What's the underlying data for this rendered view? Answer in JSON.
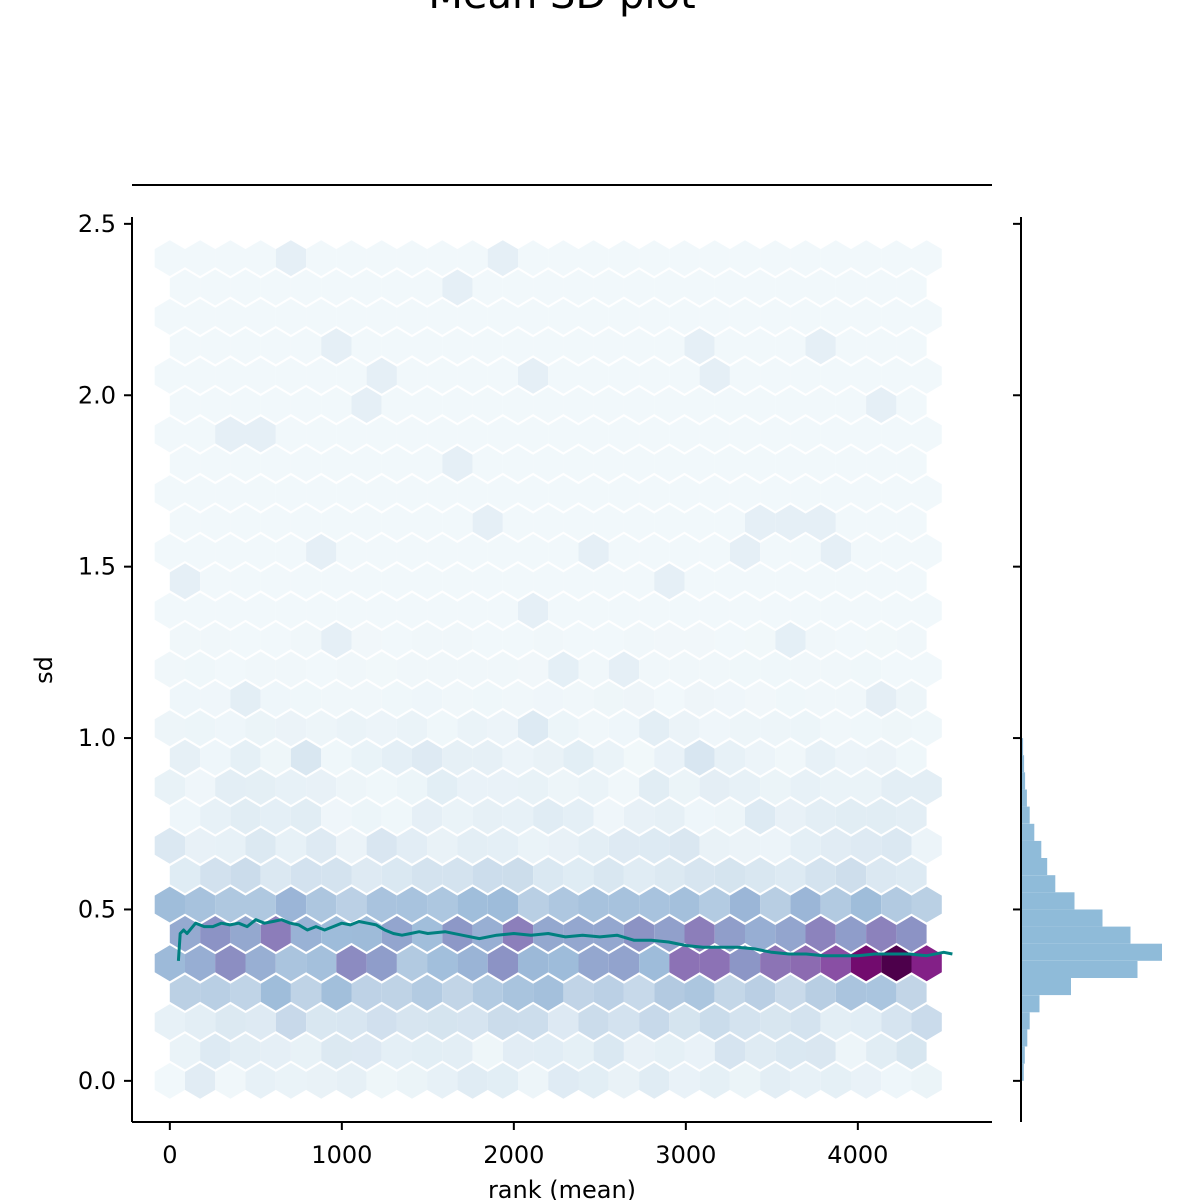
{
  "chart_data": {
    "type": "hexbin",
    "title": "Mean SD plot",
    "xlabel": "rank (mean)",
    "ylabel": "sd",
    "xlim": [
      -220,
      4780
    ],
    "ylim": [
      -0.12,
      2.52
    ],
    "xticks": [
      0,
      1000,
      2000,
      3000,
      4000
    ],
    "xtick_labels": [
      "0",
      "1000",
      "2000",
      "3000",
      "4000"
    ],
    "yticks": [
      0.0,
      0.5,
      1.0,
      1.5,
      2.0,
      2.5
    ],
    "ytick_labels": [
      "0.0",
      "0.5",
      "1.0",
      "1.5",
      "2.0",
      "2.5"
    ],
    "grid": false,
    "hexbin": {
      "colormap": "BuPu",
      "x_range": [
        0,
        4400
      ],
      "y_range": [
        0.0,
        2.4
      ],
      "gridsize": 25,
      "dense_cells": [
        {
          "x": 4200,
          "y": 0.375,
          "level": 1.0
        },
        {
          "x": 4100,
          "y": 0.375,
          "level": 0.95
        },
        {
          "x": 4300,
          "y": 0.375,
          "level": 0.9
        },
        {
          "x": 3900,
          "y": 0.375,
          "level": 0.8
        },
        {
          "x": 3750,
          "y": 0.375,
          "level": 0.72
        },
        {
          "x": 3000,
          "y": 0.375,
          "level": 0.7
        },
        {
          "x": 3200,
          "y": 0.33,
          "level": 0.7
        },
        {
          "x": 3450,
          "y": 0.375,
          "level": 0.6
        },
        {
          "x": 3300,
          "y": 0.375,
          "level": 0.6
        },
        {
          "x": 2700,
          "y": 0.375,
          "level": 0.55
        },
        {
          "x": 2850,
          "y": 0.42,
          "level": 0.5
        },
        {
          "x": 1900,
          "y": 0.47,
          "level": 0.45
        }
      ]
    },
    "rolling_line": {
      "color": "#008080",
      "x": [
        50,
        60,
        80,
        100,
        150,
        200,
        250,
        300,
        350,
        400,
        450,
        500,
        550,
        600,
        650,
        700,
        750,
        800,
        850,
        900,
        950,
        1000,
        1050,
        1100,
        1150,
        1200,
        1250,
        1300,
        1350,
        1400,
        1450,
        1500,
        1600,
        1700,
        1800,
        1900,
        2000,
        2100,
        2200,
        2300,
        2400,
        2500,
        2600,
        2700,
        2800,
        2900,
        3000,
        3100,
        3200,
        3300,
        3400,
        3500,
        3600,
        3700,
        3800,
        3900,
        4000,
        4100,
        4200,
        4300,
        4400,
        4500,
        4550
      ],
      "y": [
        0.35,
        0.43,
        0.44,
        0.43,
        0.46,
        0.45,
        0.45,
        0.46,
        0.455,
        0.46,
        0.45,
        0.47,
        0.46,
        0.465,
        0.47,
        0.46,
        0.455,
        0.44,
        0.45,
        0.44,
        0.45,
        0.46,
        0.455,
        0.465,
        0.46,
        0.455,
        0.44,
        0.43,
        0.425,
        0.43,
        0.435,
        0.43,
        0.435,
        0.425,
        0.415,
        0.425,
        0.43,
        0.425,
        0.43,
        0.42,
        0.425,
        0.42,
        0.425,
        0.41,
        0.41,
        0.405,
        0.395,
        0.39,
        0.39,
        0.39,
        0.385,
        0.375,
        0.37,
        0.37,
        0.365,
        0.365,
        0.365,
        0.37,
        0.37,
        0.37,
        0.365,
        0.375,
        0.37
      ]
    },
    "marginal_histogram": {
      "color": "#8fbbd9",
      "orientation": "horizontal",
      "bin_edges": [
        0.0,
        0.05,
        0.1,
        0.15,
        0.2,
        0.25,
        0.3,
        0.35,
        0.4,
        0.45,
        0.5,
        0.55,
        0.6,
        0.65,
        0.7,
        0.75,
        0.8,
        0.85,
        0.9,
        0.95,
        1.0
      ],
      "counts": [
        5,
        8,
        15,
        22,
        50,
        140,
        330,
        400,
        310,
        230,
        150,
        95,
        72,
        55,
        35,
        22,
        14,
        9,
        6,
        3
      ]
    }
  }
}
